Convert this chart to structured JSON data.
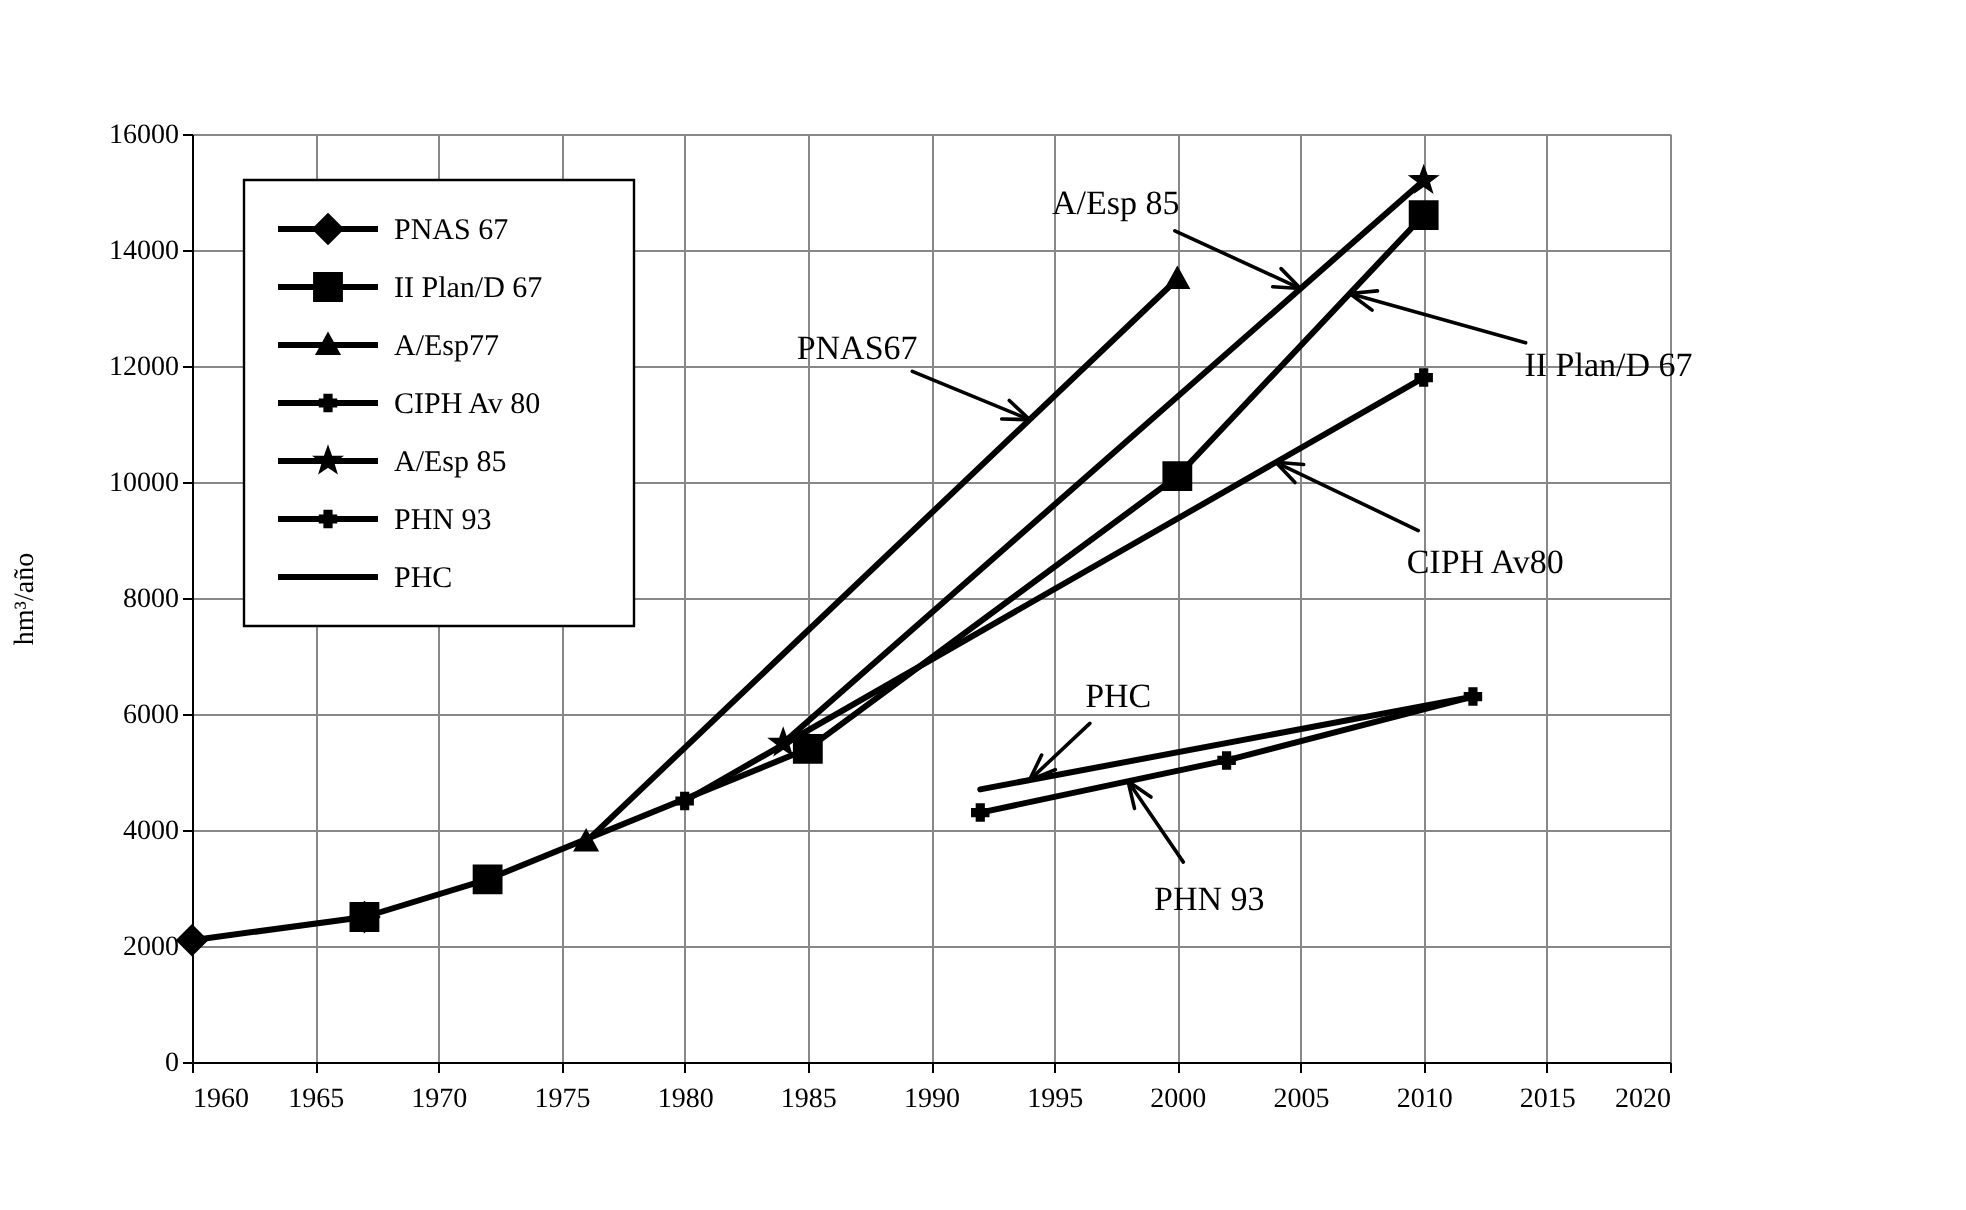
{
  "chart_data": {
    "type": "line",
    "ylabel": "hm³/año",
    "xlim": [
      1960,
      2020
    ],
    "xticks": [
      1960,
      1965,
      1970,
      1975,
      1980,
      1985,
      1990,
      1995,
      2000,
      2005,
      2010,
      2015,
      2020
    ],
    "ylim": [
      0,
      16000
    ],
    "yticks": [
      0,
      2000,
      4000,
      6000,
      8000,
      10000,
      12000,
      14000,
      16000
    ],
    "grid": true,
    "legend": "top left",
    "line_style": "solid",
    "series": [
      {
        "name": "PNAS 67",
        "color": "#000000",
        "marker": "diamond",
        "x": [
          1960,
          1967
        ],
        "values": [
          2100,
          2500
        ]
      },
      {
        "name": "II Plan/D 67",
        "color": "#000000",
        "marker": "square",
        "x": [
          2010,
          2000,
          1985,
          1972,
          1967
        ],
        "values": [
          14600,
          10100,
          5400,
          3150,
          2500
        ]
      },
      {
        "name": "A/Esp77",
        "color": "#000000",
        "marker": "triangle",
        "x": [
          1976,
          2000
        ],
        "values": [
          3800,
          13500
        ]
      },
      {
        "name": "CIPH Av 80",
        "color": "#000000",
        "marker": "cross",
        "x": [
          1980,
          2010
        ],
        "values": [
          4500,
          11800
        ]
      },
      {
        "name": "A/Esp 85",
        "color": "#000000",
        "marker": "star",
        "x": [
          1984,
          2010
        ],
        "values": [
          5500,
          15200
        ]
      },
      {
        "name": "PHN 93",
        "color": "#000000",
        "marker": "cross",
        "x": [
          1992,
          2002,
          2012
        ],
        "values": [
          4300,
          5200,
          6300
        ]
      },
      {
        "name": "PHC",
        "color": "#000000",
        "marker": "none",
        "x": [
          1992,
          2012
        ],
        "values": [
          4700,
          6300
        ]
      }
    ],
    "annotations": [
      {
        "text": "PNAS67",
        "x": 1994,
        "y": 11075
      },
      {
        "text": "A/Esp 85",
        "x": 2005,
        "y": 13335
      },
      {
        "text": "II Plan/D 67",
        "x": 2007,
        "y": 13250
      },
      {
        "text": "CIPH Av80",
        "x": 2004,
        "y": 10340
      },
      {
        "text": "PHC",
        "x": 1994,
        "y": 4860
      },
      {
        "text": "PHN 93",
        "x": 1998,
        "y": 4840
      }
    ]
  }
}
